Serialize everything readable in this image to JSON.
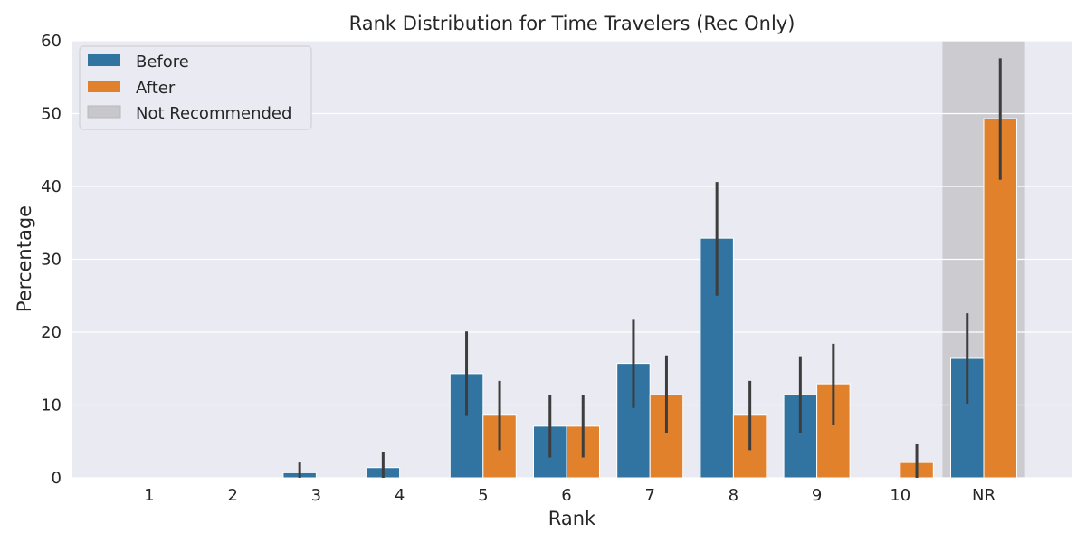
{
  "chart_data": {
    "type": "bar",
    "title": "Rank Distribution for Time Travelers (Rec Only)",
    "xlabel": "Rank",
    "ylabel": "Percentage",
    "categories": [
      "1",
      "2",
      "3",
      "4",
      "5",
      "6",
      "7",
      "8",
      "9",
      "10",
      "NR"
    ],
    "ylim": [
      0,
      60
    ],
    "yticks": [
      "0",
      "10",
      "20",
      "30",
      "40",
      "50",
      "60"
    ],
    "grid": true,
    "legend_position": "top-left",
    "series": [
      {
        "name": "Before",
        "color": "#3274a1",
        "values": [
          0,
          0,
          0.7,
          1.4,
          14.3,
          7.1,
          15.7,
          32.9,
          11.4,
          0,
          16.4
        ],
        "error_low": [
          0,
          0,
          0,
          0,
          8.5,
          2.8,
          9.6,
          25.0,
          6.1,
          0,
          10.2
        ],
        "error_high": [
          0,
          0,
          2.1,
          3.5,
          20.1,
          11.4,
          21.7,
          40.6,
          16.7,
          0,
          22.6
        ]
      },
      {
        "name": "After",
        "color": "#e1812c",
        "values": [
          0,
          0,
          0,
          0,
          8.6,
          7.1,
          11.4,
          8.6,
          12.9,
          2.1,
          49.3
        ],
        "error_low": [
          0,
          0,
          0,
          0,
          3.8,
          2.8,
          6.1,
          3.8,
          7.2,
          0,
          40.9
        ],
        "error_high": [
          0,
          0,
          0,
          0,
          13.3,
          11.4,
          16.8,
          13.3,
          18.4,
          4.6,
          57.6
        ]
      }
    ],
    "highlight": {
      "label": "Not Recommended",
      "category": "NR",
      "color": "#c8c8cc"
    }
  }
}
